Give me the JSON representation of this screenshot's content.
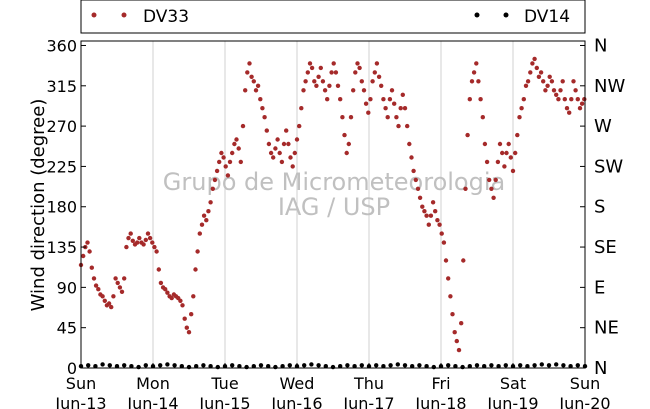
{
  "chart_data": {
    "type": "scatter",
    "ylabel": "Wind direction (degree)",
    "xlabel": "",
    "ylim": [
      0,
      365
    ],
    "y_ticks": [
      0,
      45,
      90,
      135,
      180,
      225,
      270,
      315,
      360
    ],
    "y2_ticks": [
      {
        "value": 0,
        "label": "N"
      },
      {
        "value": 45,
        "label": "NE"
      },
      {
        "value": 90,
        "label": "E"
      },
      {
        "value": 135,
        "label": "SE"
      },
      {
        "value": 180,
        "label": "S"
      },
      {
        "value": 225,
        "label": "SW"
      },
      {
        "value": 270,
        "label": "W"
      },
      {
        "value": 315,
        "label": "NW"
      },
      {
        "value": 360,
        "label": "N"
      }
    ],
    "x_ticks": [
      {
        "day": "Sun",
        "date": "Jun-13"
      },
      {
        "day": "Mon",
        "date": "Jun-14"
      },
      {
        "day": "Tue",
        "date": "Jun-15"
      },
      {
        "day": "Wed",
        "date": "Jun-16"
      },
      {
        "day": "Thu",
        "date": "Jun-17"
      },
      {
        "day": "Fri",
        "date": "Jun-18"
      },
      {
        "day": "Sat",
        "date": "Jun-19"
      },
      {
        "day": "Sun",
        "date": "Jun-20"
      }
    ],
    "grid": "vertical",
    "legend_placement": "top",
    "watermark": [
      "Grupo de Micrometeorologia",
      "IAG / USP"
    ],
    "series": [
      {
        "name": "DV33",
        "color": "#a52a2a",
        "x_unit": "days since Jun-13 00:00",
        "points": [
          [
            0.0,
            115
          ],
          [
            0.03,
            125
          ],
          [
            0.06,
            135
          ],
          [
            0.09,
            140
          ],
          [
            0.12,
            130
          ],
          [
            0.15,
            112
          ],
          [
            0.18,
            100
          ],
          [
            0.21,
            92
          ],
          [
            0.24,
            88
          ],
          [
            0.27,
            82
          ],
          [
            0.3,
            80
          ],
          [
            0.33,
            75
          ],
          [
            0.36,
            70
          ],
          [
            0.39,
            72
          ],
          [
            0.42,
            68
          ],
          [
            0.45,
            80
          ],
          [
            0.48,
            100
          ],
          [
            0.51,
            95
          ],
          [
            0.54,
            90
          ],
          [
            0.57,
            85
          ],
          [
            0.6,
            100
          ],
          [
            0.63,
            135
          ],
          [
            0.66,
            145
          ],
          [
            0.69,
            150
          ],
          [
            0.72,
            142
          ],
          [
            0.75,
            138
          ],
          [
            0.78,
            140
          ],
          [
            0.81,
            145
          ],
          [
            0.84,
            140
          ],
          [
            0.87,
            138
          ],
          [
            0.9,
            143
          ],
          [
            0.93,
            150
          ],
          [
            0.96,
            145
          ],
          [
            0.99,
            140
          ],
          [
            1.02,
            135
          ],
          [
            1.05,
            130
          ],
          [
            1.08,
            110
          ],
          [
            1.11,
            95
          ],
          [
            1.14,
            90
          ],
          [
            1.17,
            88
          ],
          [
            1.2,
            84
          ],
          [
            1.23,
            80
          ],
          [
            1.26,
            78
          ],
          [
            1.29,
            82
          ],
          [
            1.32,
            80
          ],
          [
            1.35,
            78
          ],
          [
            1.38,
            75
          ],
          [
            1.41,
            70
          ],
          [
            1.44,
            55
          ],
          [
            1.47,
            45
          ],
          [
            1.5,
            40
          ],
          [
            1.53,
            60
          ],
          [
            1.56,
            80
          ],
          [
            1.59,
            110
          ],
          [
            1.62,
            130
          ],
          [
            1.65,
            150
          ],
          [
            1.68,
            160
          ],
          [
            1.71,
            170
          ],
          [
            1.74,
            165
          ],
          [
            1.77,
            175
          ],
          [
            1.8,
            185
          ],
          [
            1.83,
            200
          ],
          [
            1.86,
            210
          ],
          [
            1.89,
            220
          ],
          [
            1.92,
            230
          ],
          [
            1.95,
            240
          ],
          [
            1.98,
            235
          ],
          [
            2.01,
            225
          ],
          [
            2.04,
            215
          ],
          [
            2.07,
            230
          ],
          [
            2.1,
            240
          ],
          [
            2.13,
            250
          ],
          [
            2.16,
            255
          ],
          [
            2.19,
            245
          ],
          [
            2.22,
            230
          ],
          [
            2.25,
            270
          ],
          [
            2.28,
            310
          ],
          [
            2.31,
            330
          ],
          [
            2.34,
            340
          ],
          [
            2.37,
            325
          ],
          [
            2.4,
            320
          ],
          [
            2.43,
            310
          ],
          [
            2.46,
            315
          ],
          [
            2.49,
            300
          ],
          [
            2.52,
            290
          ],
          [
            2.55,
            280
          ],
          [
            2.58,
            265
          ],
          [
            2.61,
            250
          ],
          [
            2.64,
            240
          ],
          [
            2.67,
            235
          ],
          [
            2.7,
            245
          ],
          [
            2.73,
            255
          ],
          [
            2.76,
            240
          ],
          [
            2.79,
            230
          ],
          [
            2.82,
            250
          ],
          [
            2.85,
            265
          ],
          [
            2.88,
            250
          ],
          [
            2.91,
            235
          ],
          [
            2.94,
            225
          ],
          [
            2.97,
            240
          ],
          [
            3.0,
            255
          ],
          [
            3.03,
            270
          ],
          [
            3.06,
            290
          ],
          [
            3.09,
            310
          ],
          [
            3.12,
            320
          ],
          [
            3.15,
            330
          ],
          [
            3.18,
            340
          ],
          [
            3.21,
            335
          ],
          [
            3.24,
            320
          ],
          [
            3.27,
            315
          ],
          [
            3.3,
            325
          ],
          [
            3.33,
            335
          ],
          [
            3.36,
            320
          ],
          [
            3.39,
            310
          ],
          [
            3.42,
            300
          ],
          [
            3.45,
            315
          ],
          [
            3.48,
            330
          ],
          [
            3.51,
            340
          ],
          [
            3.54,
            330
          ],
          [
            3.57,
            315
          ],
          [
            3.6,
            300
          ],
          [
            3.63,
            280
          ],
          [
            3.66,
            260
          ],
          [
            3.69,
            240
          ],
          [
            3.72,
            250
          ],
          [
            3.75,
            280
          ],
          [
            3.78,
            310
          ],
          [
            3.81,
            330
          ],
          [
            3.84,
            340
          ],
          [
            3.87,
            335
          ],
          [
            3.9,
            320
          ],
          [
            3.93,
            310
          ],
          [
            3.96,
            295
          ],
          [
            3.99,
            285
          ],
          [
            4.02,
            300
          ],
          [
            4.05,
            320
          ],
          [
            4.08,
            330
          ],
          [
            4.11,
            340
          ],
          [
            4.14,
            325
          ],
          [
            4.17,
            315
          ],
          [
            4.2,
            300
          ],
          [
            4.23,
            290
          ],
          [
            4.26,
            280
          ],
          [
            4.29,
            300
          ],
          [
            4.32,
            310
          ],
          [
            4.35,
            295
          ],
          [
            4.38,
            280
          ],
          [
            4.41,
            270
          ],
          [
            4.44,
            290
          ],
          [
            4.47,
            305
          ],
          [
            4.5,
            290
          ],
          [
            4.53,
            270
          ],
          [
            4.56,
            250
          ],
          [
            4.59,
            235
          ],
          [
            4.62,
            220
          ],
          [
            4.65,
            210
          ],
          [
            4.68,
            200
          ],
          [
            4.71,
            190
          ],
          [
            4.74,
            180
          ],
          [
            4.77,
            175
          ],
          [
            4.8,
            170
          ],
          [
            4.83,
            160
          ],
          [
            4.86,
            170
          ],
          [
            4.89,
            185
          ],
          [
            4.92,
            175
          ],
          [
            4.95,
            165
          ],
          [
            4.98,
            160
          ],
          [
            5.01,
            150
          ],
          [
            5.04,
            140
          ],
          [
            5.07,
            120
          ],
          [
            5.1,
            100
          ],
          [
            5.13,
            80
          ],
          [
            5.16,
            60
          ],
          [
            5.19,
            40
          ],
          [
            5.22,
            30
          ],
          [
            5.25,
            20
          ],
          [
            5.28,
            50
          ],
          [
            5.31,
            120
          ],
          [
            5.34,
            200
          ],
          [
            5.37,
            260
          ],
          [
            5.4,
            300
          ],
          [
            5.43,
            320
          ],
          [
            5.46,
            330
          ],
          [
            5.49,
            340
          ],
          [
            5.52,
            320
          ],
          [
            5.55,
            300
          ],
          [
            5.58,
            280
          ],
          [
            5.61,
            250
          ],
          [
            5.64,
            230
          ],
          [
            5.67,
            210
          ],
          [
            5.7,
            200
          ],
          [
            5.73,
            190
          ],
          [
            5.76,
            210
          ],
          [
            5.79,
            230
          ],
          [
            5.82,
            250
          ],
          [
            5.85,
            240
          ],
          [
            5.88,
            225
          ],
          [
            5.91,
            240
          ],
          [
            5.94,
            250
          ],
          [
            5.97,
            235
          ],
          [
            6.0,
            220
          ],
          [
            6.03,
            240
          ],
          [
            6.06,
            260
          ],
          [
            6.09,
            280
          ],
          [
            6.12,
            290
          ],
          [
            6.15,
            300
          ],
          [
            6.18,
            315
          ],
          [
            6.21,
            320
          ],
          [
            6.24,
            330
          ],
          [
            6.27,
            340
          ],
          [
            6.3,
            345
          ],
          [
            6.33,
            335
          ],
          [
            6.36,
            325
          ],
          [
            6.39,
            330
          ],
          [
            6.42,
            320
          ],
          [
            6.45,
            310
          ],
          [
            6.48,
            315
          ],
          [
            6.51,
            325
          ],
          [
            6.54,
            320
          ],
          [
            6.57,
            310
          ],
          [
            6.6,
            305
          ],
          [
            6.63,
            300
          ],
          [
            6.66,
            310
          ],
          [
            6.69,
            320
          ],
          [
            6.72,
            300
          ],
          [
            6.75,
            290
          ],
          [
            6.78,
            285
          ],
          [
            6.81,
            300
          ],
          [
            6.84,
            320
          ],
          [
            6.87,
            310
          ],
          [
            6.9,
            300
          ],
          [
            6.93,
            290
          ],
          [
            6.96,
            295
          ],
          [
            6.99,
            300
          ]
        ]
      },
      {
        "name": "DV14",
        "color": "#000000",
        "x_unit": "days since Jun-13 00:00",
        "points": [
          [
            0.0,
            2
          ],
          [
            0.1,
            3
          ],
          [
            0.2,
            2
          ],
          [
            0.3,
            4
          ],
          [
            0.4,
            3
          ],
          [
            0.5,
            2
          ],
          [
            0.6,
            3
          ],
          [
            0.7,
            2
          ],
          [
            0.8,
            1
          ],
          [
            0.9,
            3
          ],
          [
            1.0,
            2
          ],
          [
            1.1,
            3
          ],
          [
            1.2,
            4
          ],
          [
            1.3,
            3
          ],
          [
            1.4,
            2
          ],
          [
            1.5,
            1
          ],
          [
            1.6,
            2
          ],
          [
            1.7,
            3
          ],
          [
            1.8,
            2
          ],
          [
            1.9,
            1
          ],
          [
            2.0,
            2
          ],
          [
            2.1,
            3
          ],
          [
            2.2,
            2
          ],
          [
            2.3,
            1
          ],
          [
            2.4,
            2
          ],
          [
            2.5,
            3
          ],
          [
            2.6,
            2
          ],
          [
            2.7,
            1
          ],
          [
            2.8,
            2
          ],
          [
            2.9,
            3
          ],
          [
            3.0,
            2
          ],
          [
            3.1,
            3
          ],
          [
            3.2,
            4
          ],
          [
            3.3,
            3
          ],
          [
            3.4,
            2
          ],
          [
            3.5,
            1
          ],
          [
            3.6,
            2
          ],
          [
            3.7,
            3
          ],
          [
            3.8,
            2
          ],
          [
            3.9,
            3
          ],
          [
            4.0,
            2
          ],
          [
            4.1,
            3
          ],
          [
            4.2,
            2
          ],
          [
            4.3,
            3
          ],
          [
            4.4,
            4
          ],
          [
            4.5,
            3
          ],
          [
            4.6,
            2
          ],
          [
            4.7,
            3
          ],
          [
            4.8,
            2
          ],
          [
            4.9,
            1
          ],
          [
            5.0,
            2
          ],
          [
            5.1,
            3
          ],
          [
            5.2,
            2
          ],
          [
            5.3,
            1
          ],
          [
            5.4,
            2
          ],
          [
            5.5,
            3
          ],
          [
            5.6,
            2
          ],
          [
            5.7,
            3
          ],
          [
            5.8,
            2
          ],
          [
            5.9,
            3
          ],
          [
            6.0,
            2
          ],
          [
            6.1,
            3
          ],
          [
            6.2,
            2
          ],
          [
            6.3,
            3
          ],
          [
            6.4,
            4
          ],
          [
            6.5,
            3
          ],
          [
            6.6,
            4
          ],
          [
            6.7,
            3
          ],
          [
            6.8,
            2
          ],
          [
            6.9,
            3
          ],
          [
            7.0,
            2
          ]
        ]
      }
    ]
  }
}
